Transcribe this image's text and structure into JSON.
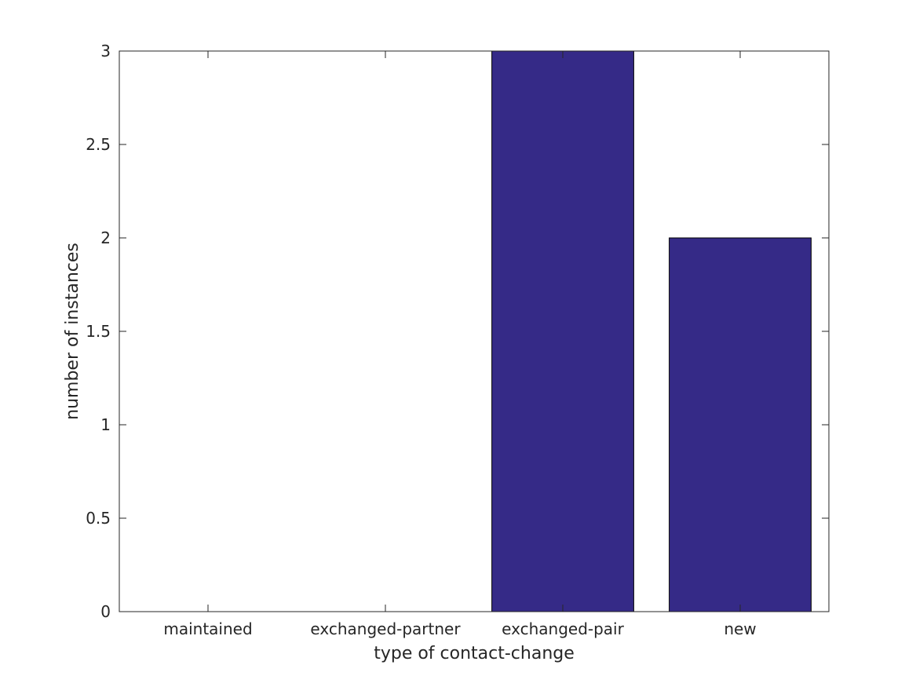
{
  "chart_data": {
    "type": "bar",
    "title": "",
    "xlabel": "type of contact-change",
    "ylabel": "number of instances",
    "categories": [
      "maintained",
      "exchanged-partner",
      "exchanged-pair",
      "new"
    ],
    "values": [
      0,
      0,
      3,
      2
    ],
    "ylim": [
      0,
      3
    ],
    "yticks": [
      "0",
      "0.5",
      "1",
      "1.5",
      "2",
      "2.5",
      "3"
    ],
    "grid": false,
    "legend": "none",
    "bar_color": "#352a87"
  }
}
